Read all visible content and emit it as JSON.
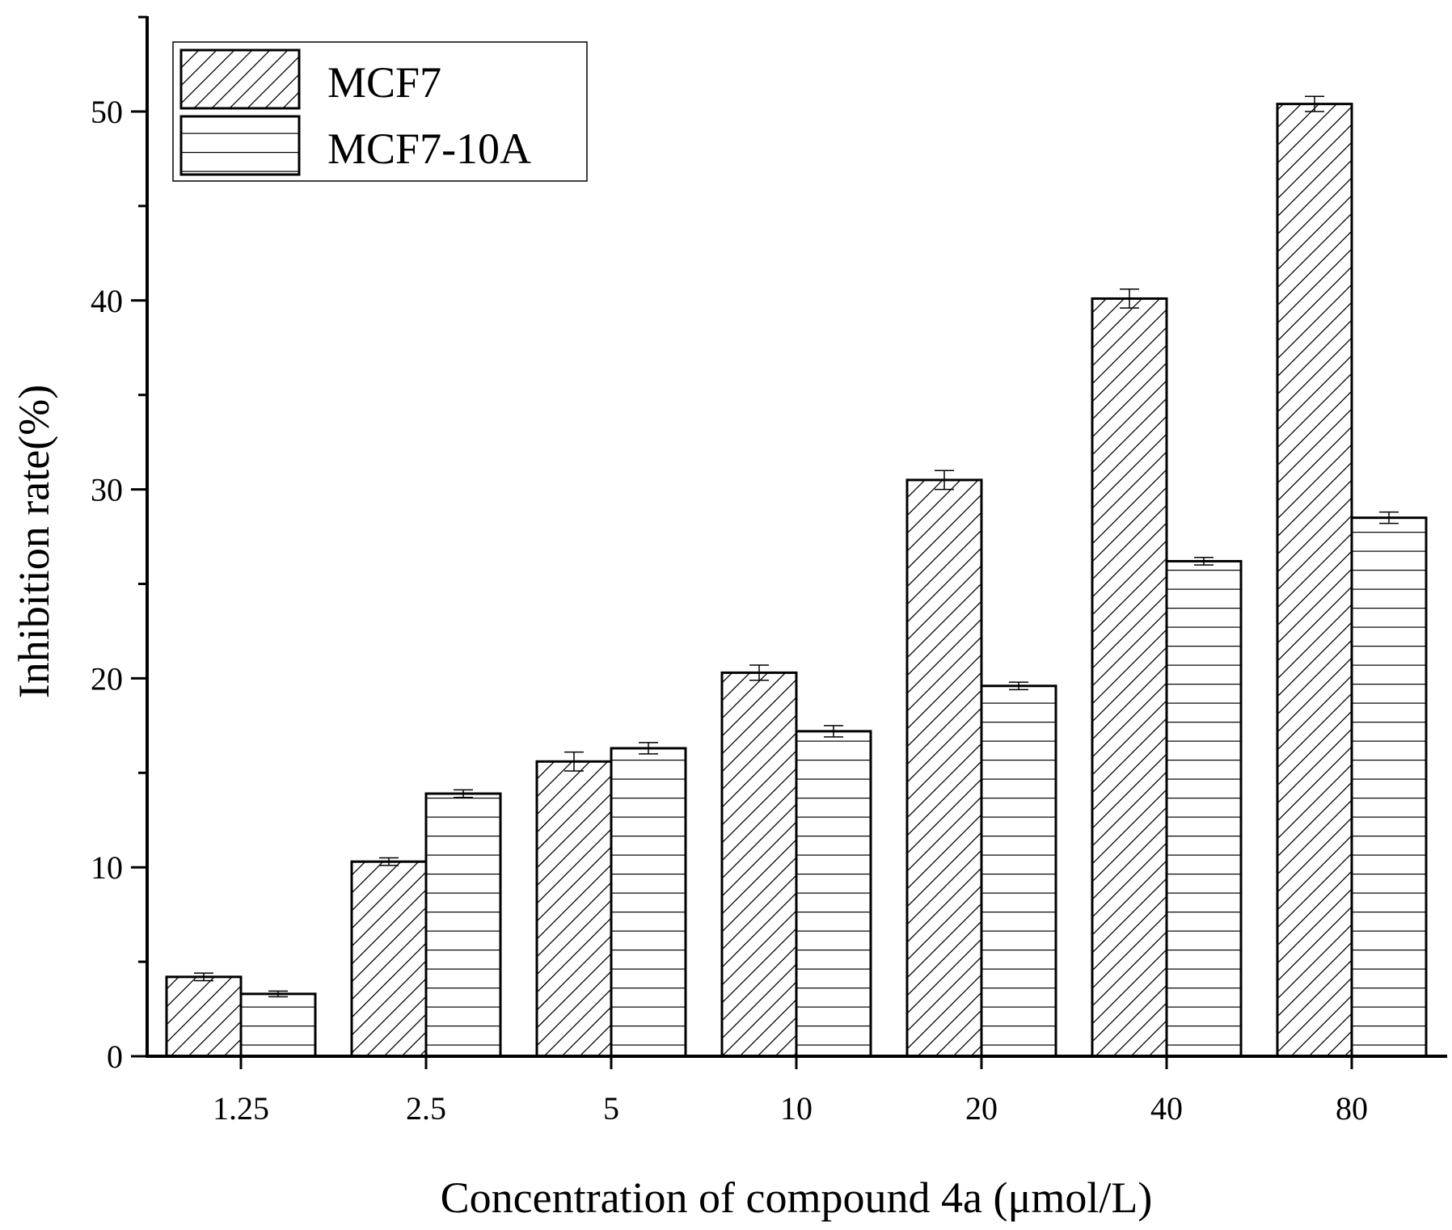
{
  "chart_data": {
    "type": "bar",
    "title": "",
    "xlabel": "Concentration of compound 4a (μmol/L)",
    "ylabel": "Inhibition rate(%)",
    "categories": [
      "1.25",
      "2.5",
      "5",
      "10",
      "20",
      "40",
      "80"
    ],
    "ylim": [
      0,
      55
    ],
    "yticks": [
      0,
      10,
      20,
      30,
      40,
      50
    ],
    "grid": false,
    "legend_position": "top-left",
    "series": [
      {
        "name": "MCF7",
        "pattern": "diagonal-hatch",
        "values": [
          4.2,
          10.3,
          15.6,
          20.3,
          30.5,
          40.1,
          50.4
        ],
        "errors": [
          0.2,
          0.2,
          0.5,
          0.4,
          0.5,
          0.5,
          0.4
        ]
      },
      {
        "name": "MCF7-10A",
        "pattern": "horizontal-hatch",
        "values": [
          3.3,
          13.9,
          16.3,
          17.2,
          19.6,
          26.2,
          28.5
        ],
        "errors": [
          0.15,
          0.2,
          0.3,
          0.3,
          0.2,
          0.2,
          0.3
        ]
      }
    ]
  }
}
